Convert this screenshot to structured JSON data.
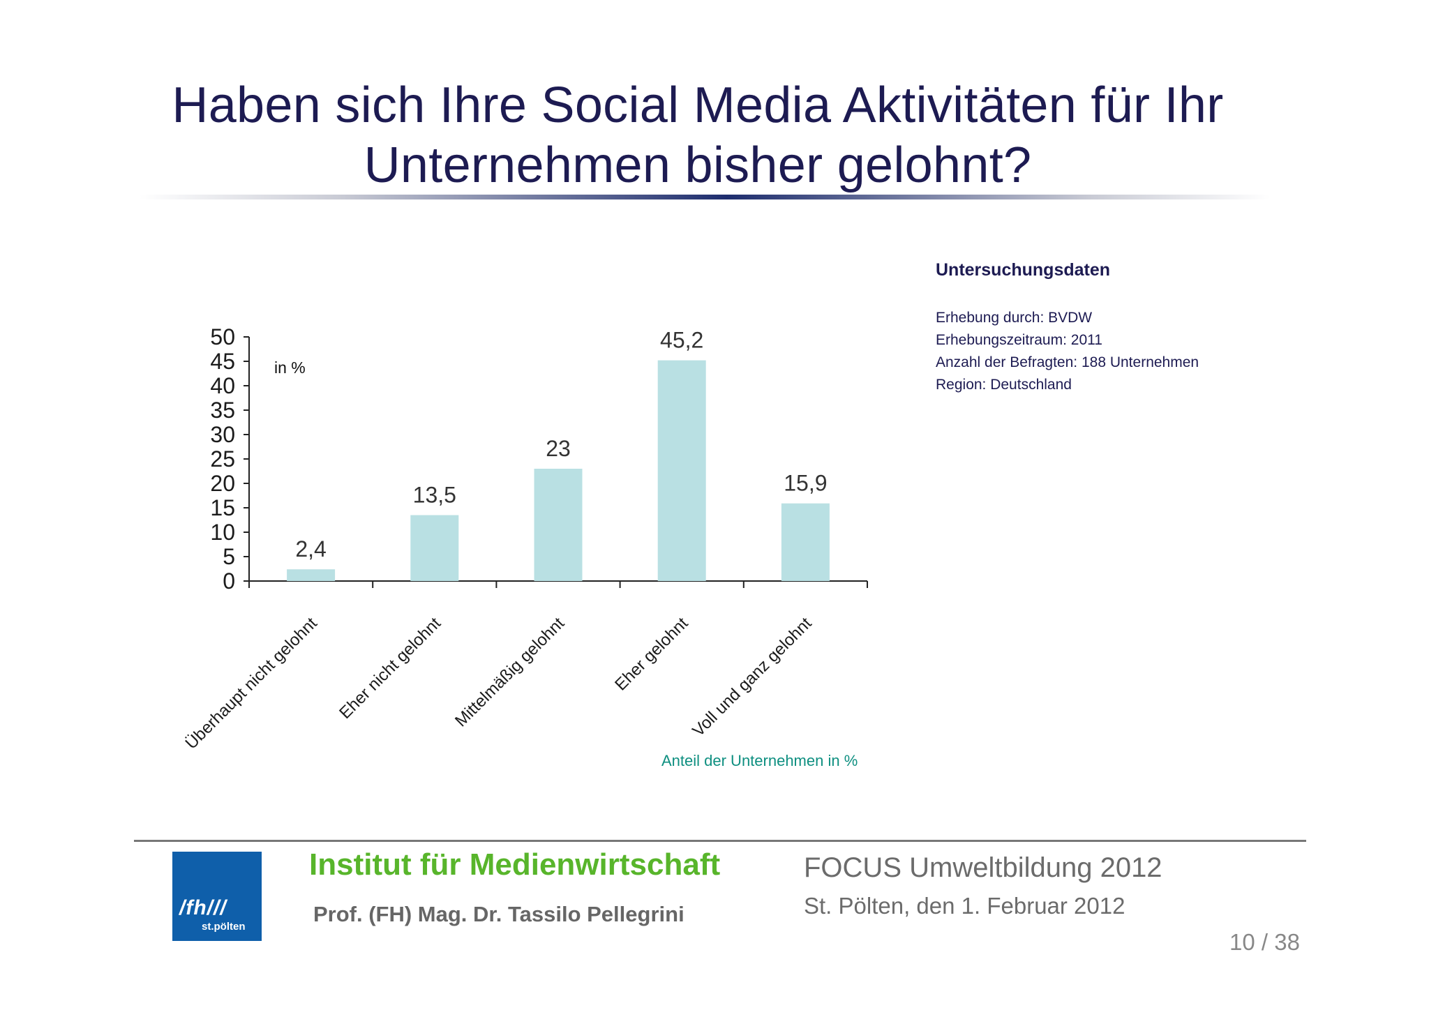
{
  "slide": {
    "title_line1": "Haben sich Ihre Social Media Aktivitäten für Ihr",
    "title_line2": "Unternehmen bisher gelohnt?"
  },
  "chart_data": {
    "type": "bar",
    "categories": [
      "Überhaupt nicht gelohnt",
      "Eher nicht gelohnt",
      "Mittelmäßig gelohnt",
      "Eher gelohnt",
      "Voll und ganz gelohnt"
    ],
    "values": [
      2.4,
      13.5,
      23,
      45.2,
      15.9
    ],
    "value_labels": [
      "2,4",
      "13,5",
      "23",
      "45,2",
      "15,9"
    ],
    "yticks": [
      0,
      5,
      10,
      15,
      20,
      25,
      30,
      35,
      40,
      45,
      50
    ],
    "ylim": [
      0,
      50
    ],
    "unit_label": "in %",
    "source_note": "Anteil der Unternehmen in %",
    "bar_color": "#b9e0e3",
    "grid": false
  },
  "survey": {
    "title": "Untersuchungsdaten",
    "lines": [
      "Erhebung durch: BVDW",
      "Erhebungszeitraum: 2011",
      "Anzahl der Befragten: 188 Unternehmen",
      "Region: Deutschland"
    ]
  },
  "footer": {
    "logo_mark": "/fh///",
    "logo_sub": "st.pölten",
    "institute": "Institut für Medienwirtschaft",
    "author": "Prof. (FH) Mag. Dr. Tassilo Pellegrini",
    "event": "FOCUS Umweltbildung 2012",
    "date": "St. Pölten, den 1. Februar 2012",
    "page": "10 / 38"
  },
  "colors": {
    "title": "#1d1b52",
    "institute": "#58b52b",
    "logo_bg": "#0f5faa",
    "source_note": "#0e8f80"
  }
}
